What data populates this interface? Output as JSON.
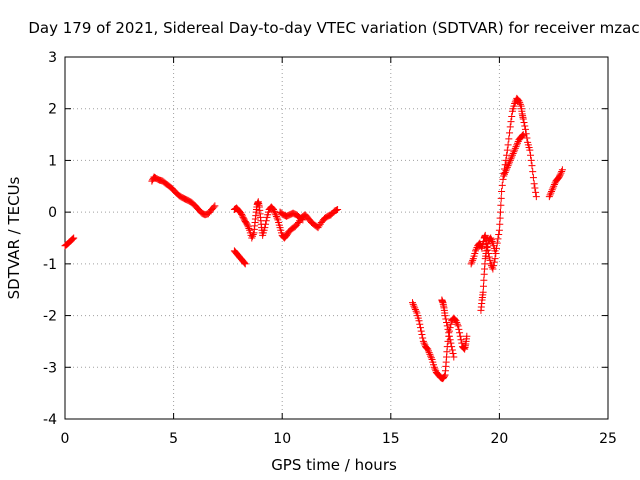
{
  "chart_data": {
    "type": "scatter",
    "title": "Day 179 of 2021, Sidereal Day-to-day VTEC variation (SDTVAR) for receiver mzac",
    "xlabel": "GPS time / hours",
    "ylabel": "SDTVAR / TECUs",
    "xlim": [
      0,
      25
    ],
    "ylim": [
      -4,
      3
    ],
    "xticks": [
      "0",
      "5",
      "10",
      "15",
      "20",
      "25"
    ],
    "yticks": [
      "-4",
      "-3",
      "-2",
      "-1",
      "0",
      "1",
      "2",
      "3"
    ],
    "grid": true,
    "marker": "plus",
    "color": "#ff0000",
    "series": [
      {
        "segments": [
          [
            [
              0.0,
              -0.65
            ],
            [
              0.1,
              -0.62
            ],
            [
              0.2,
              -0.58
            ],
            [
              0.3,
              -0.54
            ],
            [
              0.4,
              -0.5
            ]
          ],
          [
            [
              4.0,
              0.6
            ],
            [
              4.1,
              0.68
            ],
            [
              4.2,
              0.65
            ],
            [
              4.35,
              0.62
            ],
            [
              4.5,
              0.6
            ],
            [
              4.65,
              0.55
            ],
            [
              4.8,
              0.5
            ],
            [
              4.95,
              0.45
            ],
            [
              5.1,
              0.38
            ],
            [
              5.25,
              0.32
            ],
            [
              5.4,
              0.28
            ],
            [
              5.55,
              0.25
            ],
            [
              5.7,
              0.22
            ],
            [
              5.85,
              0.18
            ],
            [
              6.0,
              0.12
            ],
            [
              6.15,
              0.05
            ],
            [
              6.3,
              -0.02
            ],
            [
              6.45,
              -0.05
            ],
            [
              6.6,
              -0.03
            ],
            [
              6.75,
              0.05
            ],
            [
              6.9,
              0.12
            ]
          ],
          [
            [
              7.8,
              0.05
            ],
            [
              7.9,
              0.08
            ],
            [
              8.0,
              0.03
            ],
            [
              8.1,
              -0.02
            ],
            [
              8.2,
              -0.1
            ],
            [
              8.3,
              -0.18
            ],
            [
              8.4,
              -0.25
            ],
            [
              8.5,
              -0.35
            ],
            [
              8.6,
              -0.5
            ],
            [
              8.7,
              -0.4
            ],
            [
              8.75,
              -0.2
            ],
            [
              8.8,
              0.0
            ],
            [
              8.85,
              0.15
            ],
            [
              8.9,
              0.2
            ],
            [
              8.95,
              0.1
            ],
            [
              9.0,
              -0.1
            ],
            [
              9.05,
              -0.3
            ],
            [
              9.1,
              -0.45
            ],
            [
              9.2,
              -0.3
            ],
            [
              9.3,
              -0.1
            ],
            [
              9.4,
              0.05
            ],
            [
              9.5,
              0.1
            ],
            [
              9.6,
              0.05
            ],
            [
              9.7,
              -0.05
            ],
            [
              9.8,
              -0.15
            ],
            [
              9.9,
              -0.3
            ],
            [
              10.0,
              -0.45
            ],
            [
              10.1,
              -0.5
            ],
            [
              10.2,
              -0.45
            ],
            [
              10.3,
              -0.38
            ],
            [
              10.45,
              -0.32
            ],
            [
              10.6,
              -0.28
            ],
            [
              10.75,
              -0.2
            ],
            [
              10.9,
              -0.1
            ],
            [
              11.05,
              -0.05
            ],
            [
              11.2,
              -0.12
            ],
            [
              11.35,
              -0.2
            ],
            [
              11.5,
              -0.25
            ],
            [
              11.65,
              -0.3
            ],
            [
              11.8,
              -0.2
            ],
            [
              11.95,
              -0.12
            ],
            [
              12.1,
              -0.08
            ],
            [
              12.25,
              -0.05
            ],
            [
              12.4,
              0.02
            ],
            [
              12.55,
              0.05
            ]
          ],
          [
            [
              9.9,
              0.0
            ],
            [
              10.05,
              -0.05
            ],
            [
              10.2,
              -0.08
            ],
            [
              10.35,
              -0.05
            ],
            [
              10.5,
              -0.02
            ],
            [
              10.65,
              -0.05
            ],
            [
              10.8,
              -0.1
            ],
            [
              10.95,
              -0.15
            ]
          ],
          [
            [
              7.8,
              -0.75
            ],
            [
              7.9,
              -0.8
            ],
            [
              8.0,
              -0.85
            ],
            [
              8.1,
              -0.9
            ],
            [
              8.2,
              -0.95
            ],
            [
              8.3,
              -1.0
            ]
          ],
          [
            [
              16.0,
              -1.75
            ],
            [
              16.1,
              -1.85
            ],
            [
              16.2,
              -1.95
            ],
            [
              16.3,
              -2.1
            ],
            [
              16.4,
              -2.3
            ],
            [
              16.5,
              -2.5
            ],
            [
              16.6,
              -2.6
            ],
            [
              16.7,
              -2.65
            ],
            [
              16.8,
              -2.75
            ],
            [
              16.9,
              -2.85
            ],
            [
              17.0,
              -3.0
            ],
            [
              17.1,
              -3.1
            ],
            [
              17.2,
              -3.15
            ],
            [
              17.3,
              -3.2
            ],
            [
              17.4,
              -3.22
            ],
            [
              17.5,
              -3.15
            ],
            [
              17.55,
              -2.9
            ],
            [
              17.6,
              -2.6
            ],
            [
              17.7,
              -2.3
            ],
            [
              17.8,
              -2.1
            ],
            [
              17.9,
              -2.05
            ],
            [
              18.0,
              -2.1
            ],
            [
              18.1,
              -2.2
            ],
            [
              18.2,
              -2.4
            ],
            [
              18.3,
              -2.6
            ],
            [
              18.4,
              -2.65
            ],
            [
              18.45,
              -2.55
            ],
            [
              18.5,
              -2.4
            ]
          ],
          [
            [
              17.35,
              -1.7
            ],
            [
              17.4,
              -1.75
            ],
            [
              17.45,
              -1.85
            ],
            [
              17.5,
              -2.0
            ],
            [
              17.6,
              -2.2
            ],
            [
              17.7,
              -2.4
            ],
            [
              17.8,
              -2.6
            ],
            [
              17.9,
              -2.8
            ]
          ],
          [
            [
              18.7,
              -1.0
            ],
            [
              18.8,
              -0.9
            ],
            [
              18.9,
              -0.75
            ],
            [
              19.0,
              -0.65
            ],
            [
              19.1,
              -0.6
            ],
            [
              19.2,
              -0.7
            ],
            [
              19.3,
              -0.5
            ],
            [
              19.35,
              -0.45
            ],
            [
              19.4,
              -0.6
            ],
            [
              19.5,
              -0.8
            ],
            [
              19.6,
              -1.0
            ],
            [
              19.7,
              -1.1
            ],
            [
              19.8,
              -0.9
            ],
            [
              19.9,
              -0.6
            ],
            [
              20.0,
              -0.35
            ],
            [
              20.05,
              0.0
            ],
            [
              20.1,
              0.4
            ],
            [
              20.2,
              0.75
            ],
            [
              20.3,
              1.0
            ],
            [
              20.4,
              1.3
            ],
            [
              20.5,
              1.65
            ],
            [
              20.6,
              1.95
            ],
            [
              20.7,
              2.1
            ],
            [
              20.8,
              2.2
            ],
            [
              20.9,
              2.15
            ],
            [
              21.0,
              2.05
            ],
            [
              21.05,
              1.9
            ],
            [
              21.1,
              1.8
            ],
            [
              21.2,
              1.6
            ],
            [
              21.3,
              1.35
            ],
            [
              21.4,
              1.2
            ],
            [
              21.5,
              0.9
            ],
            [
              21.6,
              0.55
            ],
            [
              21.7,
              0.3
            ]
          ],
          [
            [
              19.15,
              -1.9
            ],
            [
              19.2,
              -1.7
            ],
            [
              19.25,
              -1.55
            ],
            [
              19.3,
              -1.2
            ],
            [
              19.35,
              -0.9
            ],
            [
              19.4,
              -0.75
            ],
            [
              19.5,
              -0.55
            ],
            [
              19.6,
              -0.5
            ],
            [
              19.7,
              -0.6
            ],
            [
              19.8,
              -0.75
            ]
          ],
          [
            [
              20.2,
              0.7
            ],
            [
              20.3,
              0.8
            ],
            [
              20.4,
              0.9
            ],
            [
              20.5,
              1.0
            ],
            [
              20.6,
              1.1
            ],
            [
              20.7,
              1.2
            ],
            [
              20.8,
              1.3
            ],
            [
              20.9,
              1.4
            ],
            [
              21.0,
              1.45
            ],
            [
              21.1,
              1.5
            ]
          ],
          [
            [
              22.3,
              0.3
            ],
            [
              22.4,
              0.4
            ],
            [
              22.5,
              0.5
            ],
            [
              22.6,
              0.6
            ],
            [
              22.7,
              0.65
            ],
            [
              22.8,
              0.72
            ],
            [
              22.9,
              0.82
            ]
          ]
        ]
      }
    ]
  }
}
